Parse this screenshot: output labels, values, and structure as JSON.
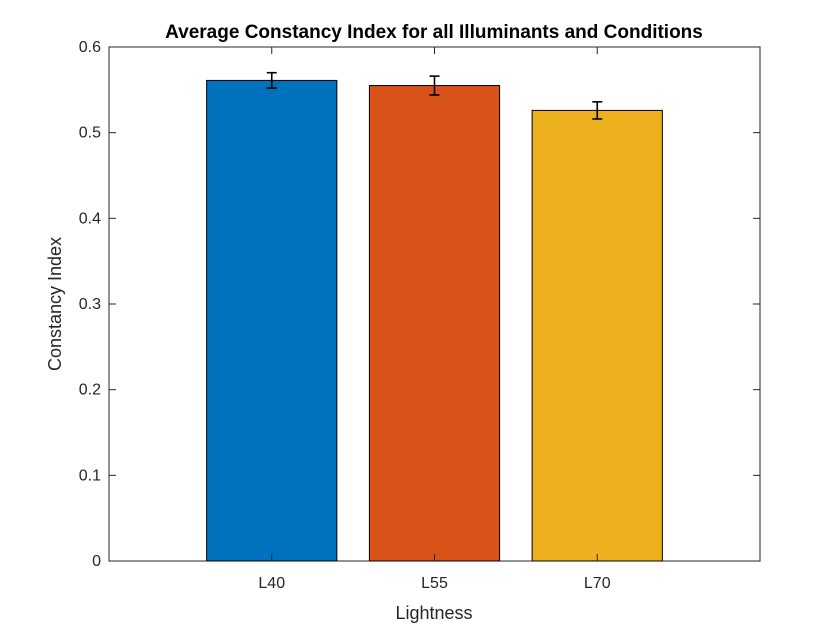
{
  "chart_data": {
    "type": "bar",
    "title": "Average Constancy Index for all Illuminants and Conditions",
    "xlabel": "Lightness",
    "ylabel": "Constancy Index",
    "categories": [
      "L40",
      "L55",
      "L70"
    ],
    "values": [
      0.561,
      0.555,
      0.526
    ],
    "errors": [
      0.009,
      0.011,
      0.01
    ],
    "colors": [
      "#0072BD",
      "#D95319",
      "#EDB120"
    ],
    "ylim": [
      0,
      0.6
    ],
    "yticks": [
      "0",
      "0.1",
      "0.2",
      "0.3",
      "0.4",
      "0.5",
      "0.6"
    ],
    "grid": false,
    "box": true
  }
}
